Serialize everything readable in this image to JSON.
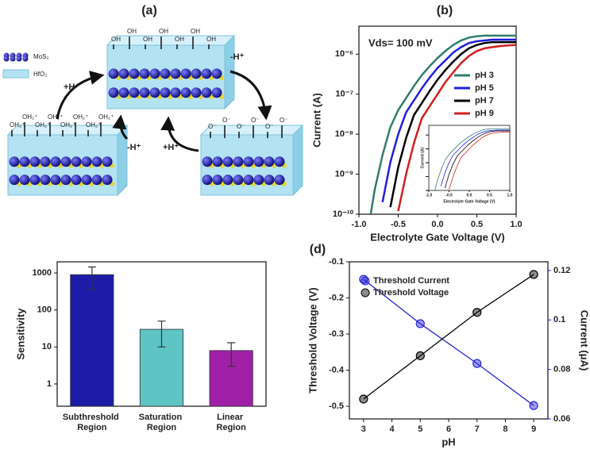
{
  "diagram": {
    "title": "(a)",
    "legend": [
      "MoS₂",
      "HfO₂"
    ],
    "top_labels": [
      "OH",
      "OH",
      "OH",
      "OH",
      "OH",
      "OH",
      "OH"
    ],
    "left_labels": [
      "OH₂⁺",
      "OH₂⁺",
      "OH₂⁺",
      "OH₂⁺",
      "OH₂⁺",
      "OH₂⁺",
      "OH₂⁺",
      "OH₂⁺"
    ],
    "right_labels": [
      "O⁻",
      "O⁻",
      "O⁻",
      "O⁻",
      "O⁻",
      "O⁻"
    ],
    "arrow_labels": [
      "+H⁺",
      "-H⁺",
      "-H⁺",
      "+H⁺"
    ]
  },
  "chart_data": [
    {
      "type": "line",
      "title": "(b)",
      "xlabel": "Electrolyte Gate Voltage (V)",
      "ylabel": "Current (A)",
      "annotation": "Vds= 100 mV",
      "log_y": true,
      "legend": "right",
      "x": [
        -0.85,
        -0.8,
        -0.7,
        -0.6,
        -0.5,
        -0.4,
        -0.3,
        -0.2,
        -0.1,
        0,
        0.1,
        0.2,
        0.3,
        0.4,
        0.5,
        0.6,
        0.7,
        0.8,
        0.9,
        1.0
      ],
      "xlim": [
        -1,
        1
      ],
      "xticks": [
        {
          "value": -1,
          "label": "-1.0"
        },
        -0.5,
        {
          "value": 0,
          "label": "0.0"
        },
        0.5,
        {
          "value": 1,
          "label": "1.0"
        }
      ],
      "ylim": [
        1e-10,
        5e-06
      ],
      "yticks": [
        {
          "value": 1e-10,
          "label": "10⁻¹⁰"
        },
        {
          "value": 1e-09,
          "label": "10⁻⁹"
        },
        {
          "value": 1e-08,
          "label": "10⁻⁸"
        },
        {
          "value": 1e-07,
          "label": "10⁻⁷"
        },
        {
          "value": 1e-06,
          "label": "10⁻⁶"
        }
      ],
      "series": [
        {
          "name": "pH 3",
          "color": "#2e7d6e",
          "values": [
            1e-10,
            4e-10,
            3e-09,
            1.5e-08,
            4e-08,
            8e-08,
            1.6e-07,
            3e-07,
            5e-07,
            8e-07,
            1.2e-06,
            1.7e-06,
            2.2e-06,
            2.6e-06,
            2.8e-06,
            2.9e-06,
            2.9e-06,
            2.9e-06,
            2.9e-06,
            2.9e-06
          ]
        },
        {
          "name": "pH 5",
          "color": "#1f1fe0",
          "values": [
            null,
            null,
            2e-10,
            2e-09,
            1e-08,
            3.5e-08,
            7e-08,
            1.4e-07,
            2.6e-07,
            4.5e-07,
            7e-07,
            1.1e-06,
            1.5e-06,
            1.9e-06,
            2.1e-06,
            2.2e-06,
            2.3e-06,
            2.3e-06,
            2.3e-06,
            2.3e-06
          ]
        },
        {
          "name": "pH 7",
          "color": "#000000",
          "values": [
            null,
            null,
            null,
            1.5e-10,
            1.5e-09,
            8e-09,
            3e-08,
            6e-08,
            1.2e-07,
            2.3e-07,
            4e-07,
            6.5e-07,
            1e-06,
            1.4e-06,
            1.7e-06,
            1.9e-06,
            2e-06,
            2e-06,
            2e-06,
            2e-06
          ]
        },
        {
          "name": "pH 9",
          "color": "#d11f1f",
          "values": [
            null,
            null,
            null,
            null,
            1.2e-10,
            1e-09,
            6e-09,
            2.5e-08,
            5e-08,
            1e-07,
            2e-07,
            3.5e-07,
            6e-07,
            9e-07,
            1.2e-06,
            1.4e-06,
            1.5e-06,
            1.6e-06,
            1.65e-06,
            1.7e-06
          ]
        }
      ],
      "inset": {
        "xlabel": "Electrolyte Gate Voltage (V)",
        "ylabel": "Current (A)",
        "xticks": [
          {
            "value": -1,
            "label": "-1.0"
          },
          -0.5,
          {
            "value": 0,
            "label": "0.0"
          },
          0.5,
          {
            "value": 1,
            "label": "1.0"
          }
        ]
      }
    },
    {
      "type": "bar",
      "ylabel": "Sensitivity",
      "log_y": true,
      "categories": [
        "Subthreshold Region",
        "Saturation Region",
        "Linear Region"
      ],
      "values": [
        900,
        30,
        8
      ],
      "errors": [
        550,
        20,
        5
      ],
      "colors": [
        "#1c1ca8",
        "#5ec4c4",
        "#a020a8"
      ],
      "ylim": [
        0.25,
        2000
      ],
      "yticks": [
        1,
        10,
        100,
        1000
      ]
    },
    {
      "type": "line",
      "title": "(d)",
      "xlabel": "pH",
      "ylabel": "Threshold Voltage (V)",
      "y2label": "Current (μA)",
      "markers": true,
      "legend": "upper left",
      "x": [
        3,
        5,
        7,
        9
      ],
      "xlim": [
        2.5,
        9.5
      ],
      "xticks": [
        3,
        4,
        5,
        6,
        7,
        8,
        9
      ],
      "ylim": [
        -0.535,
        -0.1
      ],
      "yticks": [
        -0.5,
        -0.4,
        -0.3,
        -0.2,
        -0.1
      ],
      "y2lim": [
        0.06,
        0.1235
      ],
      "y2ticks": [
        0.06,
        0.08,
        0.1,
        0.12
      ],
      "series": [
        {
          "name": "Threshold Current",
          "color": "#2323d6",
          "axis": "y2",
          "values": [
            0.1164,
            0.0985,
            0.0824,
            0.0654
          ]
        },
        {
          "name": "Threshold Voltage",
          "color": "#000000",
          "values": [
            -0.48,
            -0.36,
            -0.24,
            -0.135
          ]
        }
      ]
    }
  ]
}
